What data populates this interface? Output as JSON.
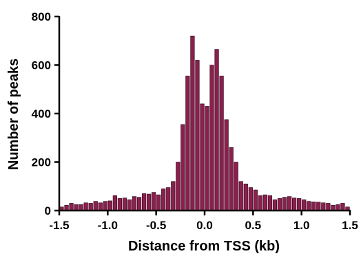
{
  "chart_data": {
    "type": "bar",
    "title": "",
    "xlabel": "Distance from TSS (kb)",
    "ylabel": "Number of peaks",
    "xlim": [
      -1.5,
      1.5
    ],
    "ylim": [
      0,
      800
    ],
    "xticks": [
      -1.5,
      -1.0,
      -0.5,
      0.0,
      0.5,
      1.0,
      1.5
    ],
    "xtick_labels": [
      "-1.5",
      "-1.0",
      "-0.5",
      "0.0",
      "0.5",
      "1.0",
      "1.5"
    ],
    "yticks": [
      0,
      200,
      400,
      600,
      800
    ],
    "ytick_labels": [
      "0",
      "200",
      "400",
      "600",
      "800"
    ],
    "grid": false,
    "legend": "none",
    "bar_color": "#8b1f4e",
    "bin_width": 0.05,
    "x": [
      -1.475,
      -1.425,
      -1.375,
      -1.325,
      -1.275,
      -1.225,
      -1.175,
      -1.125,
      -1.075,
      -1.025,
      -0.975,
      -0.925,
      -0.875,
      -0.825,
      -0.775,
      -0.725,
      -0.675,
      -0.625,
      -0.575,
      -0.525,
      -0.475,
      -0.425,
      -0.375,
      -0.325,
      -0.275,
      -0.225,
      -0.175,
      -0.125,
      -0.075,
      -0.025,
      0.025,
      0.075,
      0.125,
      0.175,
      0.225,
      0.275,
      0.325,
      0.375,
      0.425,
      0.475,
      0.525,
      0.575,
      0.625,
      0.675,
      0.725,
      0.775,
      0.825,
      0.875,
      0.925,
      0.975,
      1.025,
      1.075,
      1.125,
      1.175,
      1.225,
      1.275,
      1.325,
      1.375,
      1.425,
      1.475
    ],
    "values": [
      15,
      22,
      30,
      25,
      25,
      32,
      30,
      38,
      32,
      38,
      40,
      62,
      50,
      52,
      45,
      58,
      55,
      70,
      68,
      75,
      65,
      90,
      95,
      120,
      200,
      355,
      555,
      720,
      620,
      440,
      430,
      600,
      665,
      555,
      375,
      260,
      200,
      120,
      110,
      95,
      85,
      62,
      65,
      62,
      45,
      50,
      55,
      58,
      52,
      50,
      45,
      38,
      36,
      35,
      32,
      30,
      22,
      25,
      30,
      15
    ]
  }
}
